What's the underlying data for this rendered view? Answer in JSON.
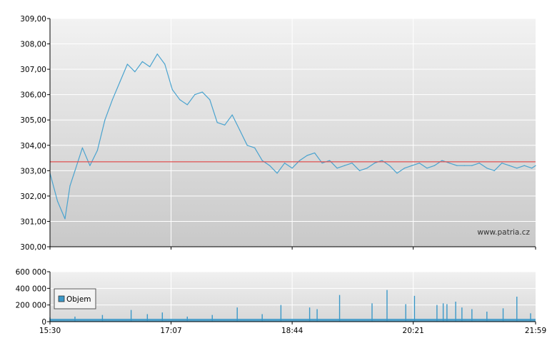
{
  "chart_data": [
    {
      "type": "line",
      "ylim": [
        300,
        309
      ],
      "y_ticks": [
        "300,00",
        "301,00",
        "302,00",
        "303,00",
        "304,00",
        "305,00",
        "306,00",
        "307,00",
        "308,00",
        "309,00"
      ],
      "x_ticks": [
        "15:30",
        "17:07",
        "18:44",
        "20:21",
        "21:59"
      ],
      "grid": true,
      "reference_line": {
        "value": 303.35,
        "color": "#e05050"
      },
      "watermark": "www.patria.cz",
      "series": [
        {
          "color": "#4aa3cf",
          "x": [
            "15:30",
            "15:36",
            "15:42",
            "15:46",
            "15:50",
            "15:56",
            "16:02",
            "16:08",
            "16:14",
            "16:20",
            "16:26",
            "16:32",
            "16:38",
            "16:44",
            "16:50",
            "16:56",
            "17:02",
            "17:08",
            "17:14",
            "17:20",
            "17:26",
            "17:32",
            "17:38",
            "17:44",
            "17:50",
            "17:56",
            "18:02",
            "18:08",
            "18:14",
            "18:20",
            "18:26",
            "18:32",
            "18:38",
            "18:44",
            "18:50",
            "18:56",
            "19:02",
            "19:08",
            "19:14",
            "19:20",
            "19:26",
            "19:32",
            "19:38",
            "19:44",
            "19:50",
            "19:56",
            "20:02",
            "20:08",
            "20:14",
            "20:20",
            "20:26",
            "20:32",
            "20:38",
            "20:44",
            "20:50",
            "20:56",
            "21:02",
            "21:08",
            "21:14",
            "21:20",
            "21:26",
            "21:32",
            "21:38",
            "21:44",
            "21:50",
            "21:56",
            "21:59"
          ],
          "y": [
            302.9,
            301.8,
            301.1,
            302.4,
            303.0,
            303.9,
            303.2,
            303.8,
            305.0,
            305.8,
            306.5,
            307.2,
            306.9,
            307.3,
            307.1,
            307.6,
            307.2,
            306.2,
            305.8,
            305.6,
            306.0,
            306.1,
            305.8,
            304.9,
            304.8,
            305.2,
            304.6,
            304.0,
            303.9,
            303.4,
            303.2,
            302.9,
            303.3,
            303.1,
            303.4,
            303.6,
            303.7,
            303.3,
            303.4,
            303.1,
            303.2,
            303.3,
            303.0,
            303.1,
            303.3,
            303.4,
            303.2,
            302.9,
            303.1,
            303.2,
            303.3,
            303.1,
            303.2,
            303.4,
            303.3,
            303.2,
            303.2,
            303.2,
            303.3,
            303.1,
            303.0,
            303.3,
            303.2,
            303.1,
            303.2,
            303.1,
            303.2
          ]
        }
      ]
    },
    {
      "type": "bar",
      "ylim": [
        0,
        600000
      ],
      "y_ticks": [
        "0",
        "200 000",
        "400 000",
        "600 000"
      ],
      "x_ticks": [
        "15:30",
        "17:07",
        "18:44",
        "20:21",
        "21:59"
      ],
      "grid": true,
      "legend": {
        "position": "left",
        "entries": [
          {
            "name": "Objem",
            "color": "#3a98c8"
          }
        ]
      },
      "series": [
        {
          "name": "Objem",
          "color": "#3a98c8",
          "x": [
            "15:30",
            "15:50",
            "16:12",
            "16:35",
            "16:48",
            "17:00",
            "17:20",
            "17:40",
            "18:00",
            "18:20",
            "18:35",
            "18:58",
            "19:04",
            "19:22",
            "19:48",
            "20:00",
            "20:15",
            "20:22",
            "20:40",
            "20:45",
            "20:48",
            "20:55",
            "21:00",
            "21:08",
            "21:20",
            "21:33",
            "21:44",
            "21:55"
          ],
          "values": [
            50000,
            60000,
            80000,
            140000,
            90000,
            110000,
            60000,
            80000,
            170000,
            90000,
            200000,
            170000,
            150000,
            320000,
            220000,
            380000,
            210000,
            310000,
            200000,
            220000,
            210000,
            240000,
            170000,
            150000,
            120000,
            160000,
            300000,
            100000
          ]
        }
      ]
    }
  ]
}
